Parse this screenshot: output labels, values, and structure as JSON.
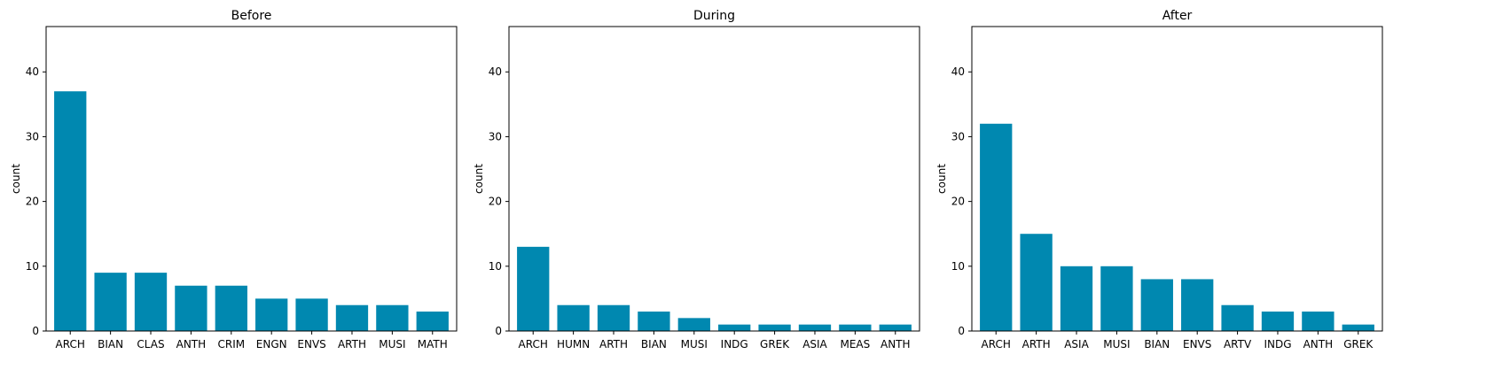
{
  "chart_data": [
    {
      "type": "bar",
      "title": "Before",
      "xlabel": "",
      "ylabel": "count",
      "ylim": [
        0,
        47
      ],
      "yticks": [
        0,
        10,
        20,
        30,
        40
      ],
      "grid": false,
      "bar_color": "#0088b0",
      "categories": [
        "ARCH",
        "BIAN",
        "CLAS",
        "ANTH",
        "CRIM",
        "ENGN",
        "ENVS",
        "ARTH",
        "MUSI",
        "MATH"
      ],
      "values": [
        37,
        9,
        9,
        7,
        7,
        5,
        5,
        4,
        4,
        3
      ]
    },
    {
      "type": "bar",
      "title": "During",
      "xlabel": "",
      "ylabel": "count",
      "ylim": [
        0,
        47
      ],
      "yticks": [
        0,
        10,
        20,
        30,
        40
      ],
      "grid": false,
      "bar_color": "#0088b0",
      "categories": [
        "ARCH",
        "HUMN",
        "ARTH",
        "BIAN",
        "MUSI",
        "INDG",
        "GREK",
        "ASIA",
        "MEAS",
        "ANTH"
      ],
      "values": [
        13,
        4,
        4,
        3,
        2,
        1,
        1,
        1,
        1,
        1
      ]
    },
    {
      "type": "bar",
      "title": "After",
      "xlabel": "",
      "ylabel": "count",
      "ylim": [
        0,
        47
      ],
      "yticks": [
        0,
        10,
        20,
        30,
        40
      ],
      "grid": false,
      "bar_color": "#0088b0",
      "categories": [
        "ARCH",
        "ARTH",
        "ASIA",
        "MUSI",
        "BIAN",
        "ENVS",
        "ARTV",
        "INDG",
        "ANTH",
        "GREK"
      ],
      "values": [
        32,
        15,
        10,
        10,
        8,
        8,
        4,
        3,
        3,
        1
      ]
    }
  ]
}
